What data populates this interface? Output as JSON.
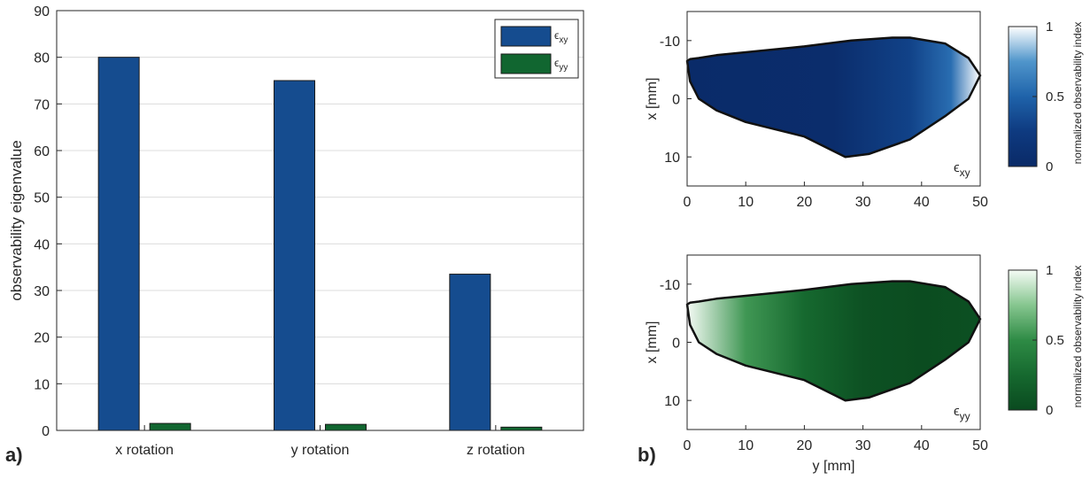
{
  "panel_labels": {
    "a": "a)",
    "b": "b)"
  },
  "chart_data": [
    {
      "type": "bar",
      "categories": [
        "x rotation",
        "y rotation",
        "z rotation"
      ],
      "series": [
        {
          "name": "ε_xy",
          "name_main": "ϵ",
          "name_sub": "xy",
          "color": "#154c8f",
          "values": [
            80.0,
            75.0,
            33.5
          ]
        },
        {
          "name": "ε_yy",
          "name_main": "ϵ",
          "name_sub": "yy",
          "color": "#116630",
          "values": [
            1.5,
            1.3,
            0.7
          ]
        }
      ],
      "ylabel": "observability eigenvalue",
      "ylim": [
        0,
        90
      ],
      "yticks": [
        0,
        10,
        20,
        30,
        40,
        50,
        60,
        70,
        80,
        90
      ],
      "grid": true,
      "legend_position": "top-right"
    },
    {
      "type": "heatmap",
      "annotation_main": "ϵ",
      "annotation_sub": "xy",
      "ylabel": "x [mm]",
      "xlabel": "",
      "xlim": [
        0,
        50
      ],
      "ylim": [
        -15,
        15
      ],
      "y_reversed": true,
      "xticks": [
        0,
        10,
        20,
        30,
        40,
        50
      ],
      "yticks": [
        -10,
        0,
        10
      ],
      "outline_y": [
        0,
        0.5,
        2,
        5,
        10,
        20,
        27,
        31,
        38,
        44,
        48,
        50,
        48,
        44,
        38,
        35,
        28,
        20,
        10,
        5,
        2,
        0.5,
        0
      ],
      "outline_x": [
        -6.5,
        -3,
        0,
        2,
        4,
        6.5,
        10,
        9.5,
        7,
        3,
        0,
        -4,
        -7,
        -9.5,
        -10.5,
        -10.5,
        -10,
        -9,
        -8,
        -7.5,
        -7,
        -6.8,
        -6.5
      ],
      "colormap": [
        "#0a2a67",
        "#0e3a80",
        "#1f63aa",
        "#4f95cb",
        "#ffffff"
      ],
      "colorbar_label": "normalized observability index",
      "colorbar_ticks": [
        0,
        0.5,
        1
      ],
      "colorbar_range": [
        0,
        1
      ],
      "value_profile_along_y": [
        [
          0,
          0.02
        ],
        [
          25,
          0.05
        ],
        [
          38,
          0.3
        ],
        [
          45,
          0.55
        ],
        [
          50,
          1.0
        ]
      ]
    },
    {
      "type": "heatmap",
      "annotation_main": "ϵ",
      "annotation_sub": "yy",
      "ylabel": "x [mm]",
      "xlabel": "y [mm]",
      "xlim": [
        0,
        50
      ],
      "ylim": [
        -15,
        15
      ],
      "y_reversed": true,
      "xticks": [
        0,
        10,
        20,
        30,
        40,
        50
      ],
      "yticks": [
        -10,
        0,
        10
      ],
      "outline_y": [
        0,
        0.5,
        2,
        5,
        10,
        20,
        27,
        31,
        38,
        44,
        48,
        50,
        48,
        44,
        38,
        35,
        28,
        20,
        10,
        5,
        2,
        0.5,
        0
      ],
      "outline_x": [
        -6.5,
        -3,
        0,
        2,
        4,
        6.5,
        10,
        9.5,
        7,
        3,
        0,
        -4,
        -7,
        -9.5,
        -10.5,
        -10.5,
        -10,
        -9,
        -8,
        -7.5,
        -7,
        -6.8,
        -6.5
      ],
      "colormap": [
        "#0a4a1f",
        "#16692f",
        "#2e8b45",
        "#86c68f",
        "#f5fbf5"
      ],
      "colorbar_label": "normalized observability index",
      "colorbar_ticks": [
        0,
        0.5,
        1
      ],
      "colorbar_range": [
        0,
        1
      ],
      "value_profile_along_y": [
        [
          0,
          1.0
        ],
        [
          10,
          0.55
        ],
        [
          20,
          0.25
        ],
        [
          30,
          0.06
        ],
        [
          40,
          0.02
        ],
        [
          50,
          0.05
        ]
      ]
    }
  ]
}
